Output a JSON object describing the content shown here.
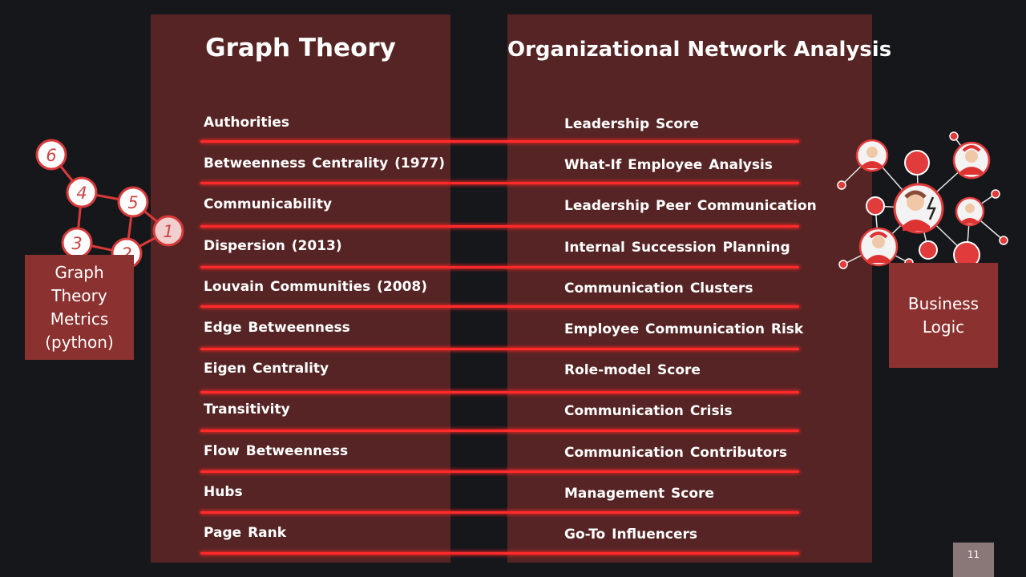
{
  "headings": {
    "left": "Graph Theory",
    "right": "Organizational Network Analysis"
  },
  "rows": [
    {
      "left": "Authorities",
      "right": "Leadership Score"
    },
    {
      "left": "Betweenness Centrality (1977)",
      "right": "What-If Employee Analysis"
    },
    {
      "left": "Communicability",
      "right": "Leadership Peer Communication"
    },
    {
      "left": "Dispersion (2013)",
      "right": "Internal Succession Planning"
    },
    {
      "left": "Louvain Communities (2008)",
      "right": "Communication Clusters"
    },
    {
      "left": "Edge Betweenness",
      "right": "Employee Communication Risk"
    },
    {
      "left": "Eigen Centrality",
      "right": "Role-model Score"
    },
    {
      "left": "Transitivity",
      "right": "Communication Crisis"
    },
    {
      "left": "Flow Betweenness",
      "right": "Communication Contributors"
    },
    {
      "left": "Hubs",
      "right": "Management Score"
    },
    {
      "left": "Page Rank",
      "right": "Go-To Influencers"
    }
  ],
  "side_boxes": {
    "left": [
      "Graph",
      "Theory",
      "Metrics",
      "(python)"
    ],
    "right": [
      "Business",
      "Logic"
    ]
  },
  "graph_nodes": [
    "6",
    "4",
    "5",
    "1",
    "3",
    "2"
  ],
  "page_number": "11",
  "colors": {
    "background": "#15171b",
    "panel": "#562424",
    "accent_line": "#ff2a2a",
    "side_box": "#8b3130",
    "node_stroke": "#d83a3a"
  },
  "icons": {
    "graph": "numbered-graph-icon",
    "network": "people-network-icon"
  }
}
